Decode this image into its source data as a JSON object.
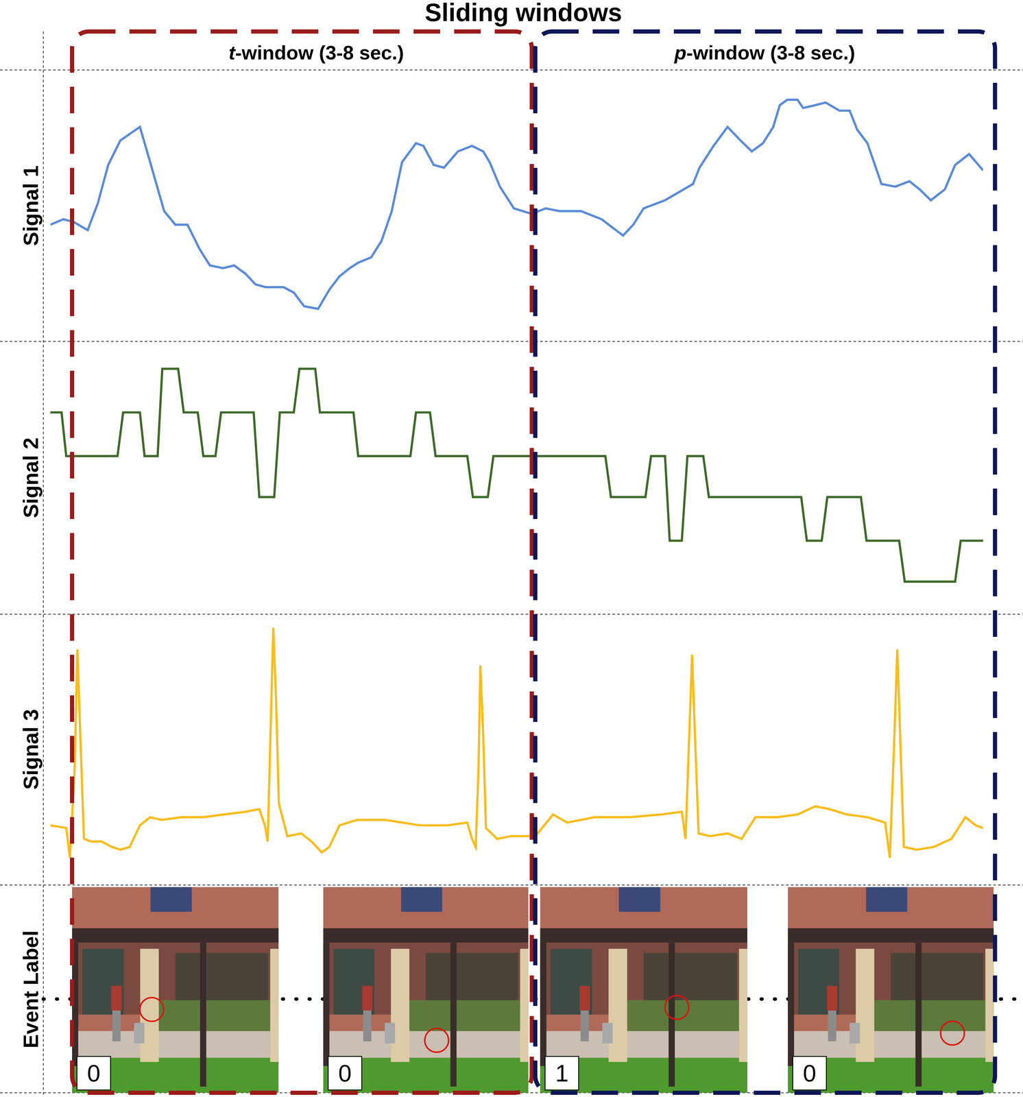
{
  "title": "Sliding windows",
  "windows": [
    {
      "label": "t-window (3-8 sec.)",
      "color": "#9b1b1b"
    },
    {
      "label": "p-window (3-8 sec.)",
      "color": "#0f1657"
    }
  ],
  "chart_data": [
    {
      "type": "line",
      "name": "Signal 1",
      "color": "#5b8bd6",
      "xlim": [
        0,
        100
      ],
      "ylim": [
        0,
        100
      ],
      "tick_labels": false,
      "x": [
        0,
        1.4,
        2.5,
        4.0,
        5.1,
        6.2,
        7.5,
        9.6,
        10.7,
        12.2,
        13.4,
        14.7,
        16.0,
        17.1,
        18.5,
        19.7,
        20.9,
        22.0,
        23.1,
        25.0,
        26.1,
        27.2,
        28.7,
        29.9,
        31.0,
        32.1,
        33.0,
        34.4,
        35.5,
        36.6,
        37.7,
        39.2,
        40.0,
        41.1,
        42.2,
        43.7,
        45.2,
        46.4,
        47.1,
        48.2,
        49.7,
        51.6,
        53.1,
        54.6,
        56.9,
        59.1,
        61.4,
        62.5,
        63.6,
        65.9,
        68.9,
        69.6,
        71.1,
        72.6,
        74.0,
        75.2,
        76.4,
        77.5,
        78.2,
        79.0,
        80.1,
        80.7,
        82.0,
        83.1,
        84.6,
        85.7,
        86.5,
        87.6,
        89.1,
        90.6,
        92.1,
        93.2,
        94.4,
        95.9,
        97.0,
        98.5,
        100
      ],
      "values": [
        43,
        45,
        44,
        41,
        51,
        65,
        74,
        79,
        66,
        48,
        43,
        43,
        34,
        28,
        27,
        28,
        25,
        21,
        20,
        20,
        18,
        13,
        12,
        19,
        24,
        27,
        29,
        31,
        37,
        48,
        66,
        73,
        72,
        65,
        64,
        70,
        72,
        70,
        66,
        57,
        49,
        47,
        49,
        48,
        48,
        45,
        39,
        43,
        49,
        52,
        58,
        64,
        72,
        79,
        74,
        70,
        73,
        79,
        87,
        89,
        89,
        86,
        87,
        88,
        85,
        85,
        78,
        73,
        58,
        57,
        59,
        56,
        52,
        56,
        65,
        69,
        63
      ]
    },
    {
      "type": "line",
      "name": "Signal 2",
      "color": "#3f6a2a",
      "xlim": [
        0,
        100
      ],
      "ylim": [
        0,
        100
      ],
      "tick_labels": false,
      "x": [
        0,
        1.2,
        1.7,
        7.2,
        7.8,
        9.6,
        10.1,
        11.5,
        12.0,
        13.7,
        14.3,
        15.8,
        16.4,
        17.7,
        18.3,
        21.8,
        22.4,
        24.0,
        24.6,
        26.1,
        26.7,
        28.4,
        28.9,
        32.5,
        33.0,
        38.6,
        39.2,
        40.7,
        41.3,
        44.7,
        45.3,
        46.9,
        47.5,
        59.5,
        60.1,
        63.8,
        64.4,
        65.9,
        66.4,
        67.7,
        68.3,
        70.0,
        70.6,
        80.5,
        81.1,
        82.7,
        83.3,
        86.9,
        87.5,
        91.0,
        91.6,
        97.0,
        97.6,
        100
      ],
      "values": [
        74,
        74,
        58,
        58,
        74,
        74,
        58,
        58,
        90,
        90,
        74,
        74,
        58,
        58,
        74,
        74,
        43,
        43,
        74,
        74,
        90,
        90,
        74,
        74,
        58,
        58,
        74,
        74,
        58,
        58,
        43,
        43,
        58,
        58,
        43,
        43,
        58,
        58,
        27,
        27,
        58,
        58,
        43,
        43,
        27,
        27,
        43,
        43,
        27,
        27,
        12,
        12,
        27,
        27
      ]
    },
    {
      "type": "line",
      "name": "Signal 3",
      "color": "#f8bd1c",
      "xlim": [
        0,
        100
      ],
      "ylim": [
        0,
        100
      ],
      "tick_labels": false,
      "x": [
        0,
        1.7,
        2.1,
        2.6,
        2.9,
        3.2,
        3.6,
        4.4,
        5.5,
        6.6,
        7.5,
        8.5,
        9.6,
        10.7,
        11.9,
        14.1,
        16.4,
        18.6,
        20.9,
        22.4,
        23.0,
        23.3,
        23.6,
        23.9,
        24.2,
        24.5,
        25.4,
        26.9,
        28.0,
        29.1,
        29.9,
        31.0,
        32.9,
        35.9,
        39.6,
        42.6,
        44.7,
        45.2,
        45.6,
        45.9,
        46.1,
        46.4,
        46.7,
        47.9,
        49.4,
        50.9,
        52.0,
        53.9,
        55.4,
        58.4,
        62.1,
        65.5,
        67.7,
        68.1,
        68.5,
        68.8,
        69.1,
        69.5,
        70.7,
        72.6,
        74.1,
        75.6,
        77.9,
        80.1,
        82.0,
        83.5,
        85.4,
        87.6,
        89.5,
        90.0,
        90.5,
        90.8,
        91.1,
        91.5,
        92.9,
        94.7,
        96.6,
        98.1,
        99.2,
        100
      ],
      "values": [
        22,
        21,
        10,
        43,
        87,
        56,
        17,
        16,
        16,
        14,
        13,
        14,
        22,
        25,
        24,
        25,
        25,
        26,
        27,
        28,
        22,
        16,
        56,
        95,
        68,
        30,
        18,
        19,
        16,
        12,
        14,
        22,
        24,
        24,
        22,
        22,
        23,
        17,
        14,
        43,
        81,
        56,
        21,
        17,
        18,
        18,
        18,
        26,
        23,
        25,
        25,
        26,
        27,
        17,
        56,
        85,
        56,
        19,
        18,
        19,
        17,
        25,
        25,
        26,
        29,
        28,
        26,
        25,
        23,
        10,
        56,
        87,
        56,
        14,
        13,
        14,
        17,
        25,
        22,
        21
      ]
    }
  ],
  "event_row": {
    "label": "Event Label",
    "event_labels": [
      0,
      0,
      1,
      0
    ]
  }
}
